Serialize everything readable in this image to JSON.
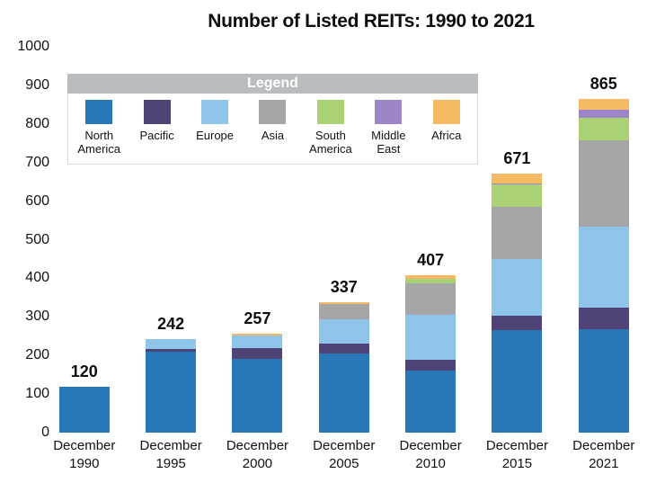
{
  "page": {
    "background": "#ffffff"
  },
  "chart_data": {
    "type": "bar",
    "stacked": true,
    "title": "Number of Listed REITs: 1990 to 2021",
    "legend_title": "Legend",
    "categories": [
      "December 1990",
      "December 1995",
      "December 2000",
      "December 2005",
      "December 2010",
      "December 2015",
      "December 2021"
    ],
    "totals": [
      120,
      242,
      257,
      337,
      407,
      671,
      865
    ],
    "series": [
      {
        "name": "North America",
        "color": "#2878b8",
        "values": [
          120,
          210,
          192,
          206,
          160,
          266,
          269
        ]
      },
      {
        "name": "Pacific",
        "color": "#4e4374",
        "values": [
          0,
          8,
          27,
          24,
          30,
          37,
          55
        ]
      },
      {
        "name": "Europe",
        "color": "#8ec5e8",
        "values": [
          0,
          24,
          32,
          63,
          115,
          147,
          211
        ]
      },
      {
        "name": "Asia",
        "color": "#a6a6a8",
        "values": [
          0,
          0,
          0,
          40,
          82,
          135,
          223
        ]
      },
      {
        "name": "South America",
        "color": "#abd175",
        "values": [
          0,
          0,
          0,
          0,
          11,
          58,
          59
        ]
      },
      {
        "name": "Middle East",
        "color": "#9d86c8",
        "values": [
          0,
          0,
          0,
          0,
          0,
          3,
          20
        ]
      },
      {
        "name": "Africa",
        "color": "#f4bb64",
        "values": [
          0,
          0,
          6,
          4,
          9,
          25,
          28
        ]
      }
    ],
    "yticks": [
      0,
      100,
      200,
      300,
      400,
      500,
      600,
      700,
      800,
      900,
      1000
    ],
    "ylim": [
      0,
      1000
    ],
    "grid": false,
    "legend_position": "overlay-top-left"
  },
  "colors": {
    "legend_header_bg": "#b9bdc0",
    "legend_header_text": "#ffffff",
    "legend_border": "#d9dadb"
  }
}
